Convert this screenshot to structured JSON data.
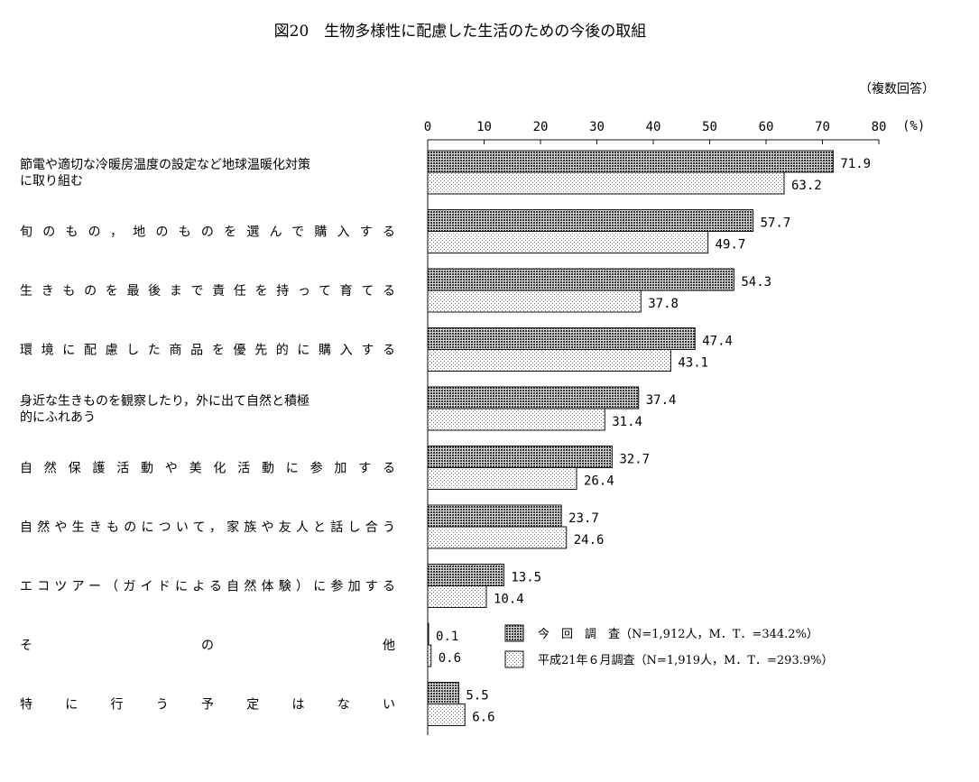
{
  "chart_data": {
    "type": "bar",
    "orientation": "horizontal",
    "title": "図20　生物多様性に配慮した生活のための今後の取組",
    "note": "（複数回答）",
    "unit": "(%)",
    "xlim": [
      0,
      80
    ],
    "ticks": [
      "0",
      "10",
      "20",
      "30",
      "40",
      "50",
      "60",
      "70",
      "80"
    ],
    "categories": [
      [
        "節電や適切な冷暖房温度の設定など地球温暖化対策",
        "に取り組む"
      ],
      [
        "旬のもの，地のものを選んで購入する"
      ],
      [
        "生きものを最後まで責任を持って育てる"
      ],
      [
        "環境に配慮した商品を優先的に購入する"
      ],
      [
        "身近な生きものを観察したり，外に出て自然と積極",
        "的にふれあう"
      ],
      [
        "自然保護活動や美化活動に参加する"
      ],
      [
        "自然や生きものについて，家族や友人と話し合う"
      ],
      [
        "エコツアー（ガイドによる自然体験）に参加する"
      ],
      [
        "そ　　　　　　　の　　　　　　　他"
      ],
      [
        "特に行う予定はない"
      ]
    ],
    "series": [
      {
        "name": "今　回　調　査（N=1,912人，M．T．=344.2%）",
        "values": [
          71.9,
          57.7,
          54.3,
          47.4,
          37.4,
          32.7,
          23.7,
          13.5,
          0.1,
          5.5
        ],
        "labels": [
          "71.9",
          "57.7",
          "54.3",
          "47.4",
          "37.4",
          "32.7",
          "23.7",
          "13.5",
          "0.1",
          "5.5"
        ],
        "pattern": "dark-dots"
      },
      {
        "name": "平成21年６月調査（N=1,919人，M．T．=293.9%）",
        "values": [
          63.2,
          49.7,
          37.8,
          43.1,
          31.4,
          26.4,
          24.6,
          10.4,
          0.6,
          6.6
        ],
        "labels": [
          "63.2",
          "49.7",
          "37.8",
          "43.1",
          "31.4",
          "26.4",
          "24.6",
          "10.4",
          "0.6",
          "6.6"
        ],
        "pattern": "light-dots"
      }
    ],
    "grid": false,
    "legend_position": "lower-right"
  },
  "colors": {
    "ink": "#111111",
    "dark_fill": "#555555",
    "light_fill": "#ffffff"
  }
}
